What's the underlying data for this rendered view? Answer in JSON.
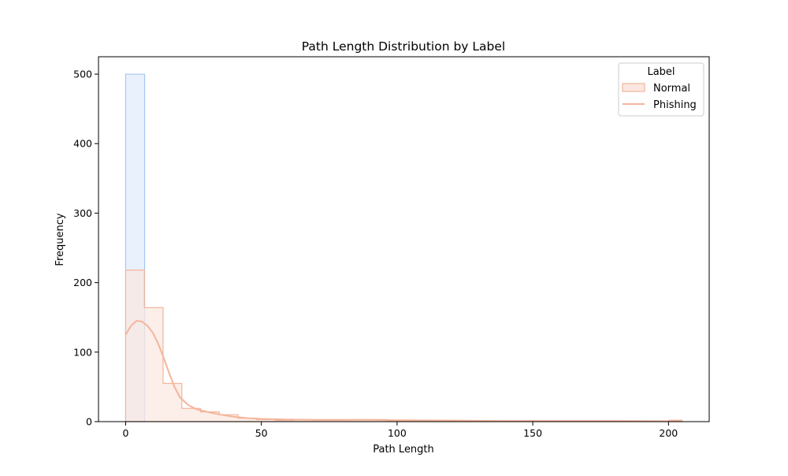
{
  "chart_data": {
    "type": "histogram",
    "title": "Path Length Distribution by Label",
    "xlabel": "Path Length",
    "ylabel": "Frequency",
    "xlim": [
      -10,
      215
    ],
    "ylim": [
      0,
      525
    ],
    "x_ticks": [
      0,
      50,
      100,
      150,
      200
    ],
    "y_ticks": [
      0,
      100,
      200,
      300,
      400,
      500
    ],
    "grid": false,
    "legend": {
      "title": "Label",
      "placement": "top-right",
      "entries": [
        {
          "label": "Normal",
          "marker": "patch",
          "color": "#f4b59b"
        },
        {
          "label": "Phishing",
          "marker": "line",
          "color": "#f4b59b"
        }
      ]
    },
    "series": [
      {
        "style": "step-filled",
        "edge_color": "#a7c7f2",
        "fill_color": "#e9f1fd",
        "bin_edges": [
          0,
          7
        ],
        "counts": [
          500
        ]
      },
      {
        "style": "step-filled",
        "edge_color": "#f4b59b",
        "fill_color": "#fbe7df",
        "bin_edges": [
          0,
          6.9,
          13.8,
          20.7,
          27.6,
          34.5,
          41.4,
          48.3,
          55.2,
          62.1,
          69.0,
          75.9,
          82.8,
          89.7,
          96.6,
          103.5,
          110.4,
          117.3,
          124.2,
          131.1,
          138.0,
          144.9,
          151.8,
          158.7,
          165.6,
          172.5,
          179.4,
          186.3,
          193.2,
          200.1,
          205
        ],
        "counts": [
          218,
          164,
          55,
          19,
          14,
          10,
          5,
          3,
          2,
          3,
          2,
          2,
          3,
          3,
          1,
          1,
          1,
          1,
          1,
          1,
          1,
          1,
          1,
          1,
          1,
          1,
          1,
          1,
          1,
          2
        ],
        "kde": {
          "x": [
            0,
            2,
            4,
            6,
            8,
            10,
            12,
            14,
            16,
            18,
            20,
            23,
            26,
            30,
            35,
            40,
            45,
            50,
            60,
            70,
            80,
            90,
            100,
            120,
            140,
            160,
            180,
            205
          ],
          "y": [
            125,
            138,
            145,
            144,
            138,
            128,
            112,
            92,
            70,
            50,
            35,
            24,
            18,
            14,
            10,
            7,
            5,
            4,
            3,
            2.5,
            2.5,
            2.5,
            2,
            1.5,
            1,
            1,
            1,
            0.5
          ]
        }
      }
    ]
  }
}
